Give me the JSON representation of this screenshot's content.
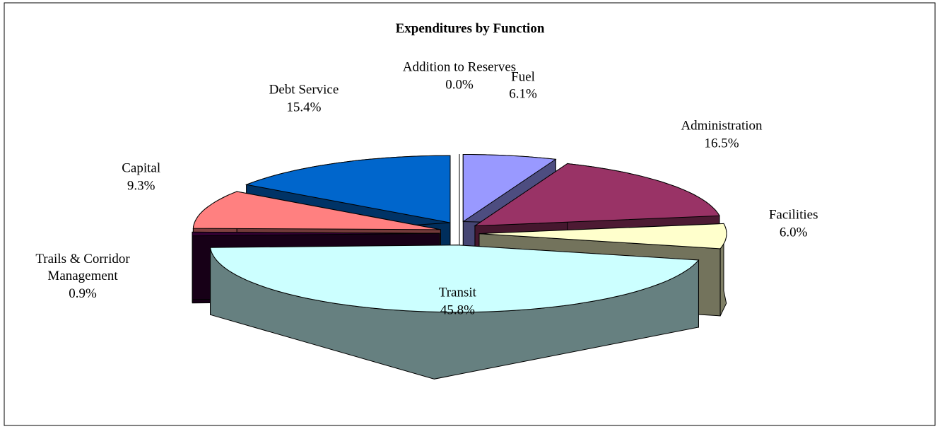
{
  "chart_data": {
    "type": "pie3d",
    "title": "Expenditures by Function",
    "categories": [
      "Addition to Reserves",
      "Fuel",
      "Administration",
      "Facilities",
      "Transit",
      "Trails & Corridor Management",
      "Capital",
      "Debt Service"
    ],
    "values": [
      0.0,
      6.1,
      16.5,
      6.0,
      45.8,
      0.9,
      9.3,
      15.4
    ],
    "value_labels": [
      "0.0%",
      "6.1%",
      "16.5%",
      "6.0%",
      "45.8%",
      "0.9%",
      "9.3%",
      "15.4%"
    ],
    "colors": [
      "#ffffff",
      "#9999ff",
      "#993366",
      "#ffffcc",
      "#ccffff",
      "#330033",
      "#ff8080",
      "#0066cc"
    ]
  }
}
